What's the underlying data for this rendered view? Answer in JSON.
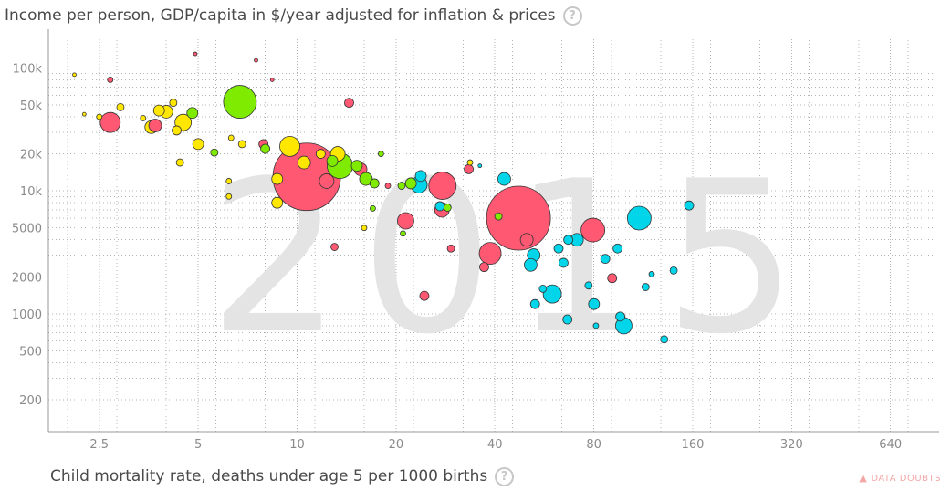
{
  "header": {
    "y_axis_title": "Income per person, GDP/capita in $/year adjusted for inflation & prices",
    "help_glyph": "?"
  },
  "footer": {
    "x_axis_title": "Child mortality rate, deaths under age 5 per 1000 births",
    "data_doubts_label": "DATA DOUBTS",
    "warning_glyph": "▲"
  },
  "colors": {
    "europe": "#ffe700",
    "asia": "#ff5872",
    "americas": "#7feb00",
    "africa": "#00d5e9",
    "grid": "#b4b4b4",
    "year_watermark": "#e4e4e4"
  },
  "chart_data": {
    "type": "scatter",
    "title": "",
    "year": "2015",
    "xlabel": "Child mortality rate, deaths under age 5 per 1000 births",
    "ylabel": "Income per person, GDP/capita in $/year adjusted for inflation & prices",
    "x_scale": "log",
    "y_scale": "log",
    "xlim": [
      1.75,
      900
    ],
    "ylim": [
      110,
      180000
    ],
    "x_ticks": [
      2.5,
      5,
      10,
      20,
      40,
      80,
      160,
      320,
      640
    ],
    "x_tick_labels": [
      "2.5",
      "5",
      "10",
      "20",
      "40",
      "80",
      "160",
      "320",
      "640"
    ],
    "y_ticks": [
      200,
      500,
      1000,
      2000,
      5000,
      10000,
      20000,
      50000,
      100000
    ],
    "y_tick_labels": [
      "200",
      "500",
      "1000",
      "2000",
      "5000",
      "10k",
      "20k",
      "50k",
      "100k"
    ],
    "grid": true,
    "points": [
      {
        "x": 2.7,
        "y": 36000,
        "r": 11,
        "c": "asia"
      },
      {
        "x": 2.1,
        "y": 88000,
        "r": 2,
        "c": "europe"
      },
      {
        "x": 2.25,
        "y": 42000,
        "r": 2,
        "c": "europe"
      },
      {
        "x": 2.5,
        "y": 40000,
        "r": 3,
        "c": "europe"
      },
      {
        "x": 2.7,
        "y": 80000,
        "r": 3,
        "c": "asia"
      },
      {
        "x": 2.9,
        "y": 48000,
        "r": 4,
        "c": "europe"
      },
      {
        "x": 3.4,
        "y": 39000,
        "r": 3,
        "c": "europe"
      },
      {
        "x": 3.6,
        "y": 33000,
        "r": 7,
        "c": "europe"
      },
      {
        "x": 3.7,
        "y": 34000,
        "r": 7,
        "c": "asia"
      },
      {
        "x": 3.8,
        "y": 45000,
        "r": 6,
        "c": "europe"
      },
      {
        "x": 4.0,
        "y": 44000,
        "r": 7,
        "c": "europe"
      },
      {
        "x": 4.3,
        "y": 31000,
        "r": 5,
        "c": "europe"
      },
      {
        "x": 4.5,
        "y": 36000,
        "r": 9,
        "c": "europe"
      },
      {
        "x": 4.2,
        "y": 52000,
        "r": 4,
        "c": "europe"
      },
      {
        "x": 4.8,
        "y": 43000,
        "r": 6,
        "c": "americas"
      },
      {
        "x": 5.0,
        "y": 24000,
        "r": 6,
        "c": "europe"
      },
      {
        "x": 4.4,
        "y": 17000,
        "r": 4,
        "c": "europe"
      },
      {
        "x": 5.6,
        "y": 20500,
        "r": 4,
        "c": "americas"
      },
      {
        "x": 4.9,
        "y": 130000,
        "r": 2,
        "c": "asia"
      },
      {
        "x": 6.7,
        "y": 53000,
        "r": 18,
        "c": "americas"
      },
      {
        "x": 6.3,
        "y": 27000,
        "r": 3,
        "c": "europe"
      },
      {
        "x": 6.8,
        "y": 24000,
        "r": 4,
        "c": "europe"
      },
      {
        "x": 6.2,
        "y": 12000,
        "r": 3,
        "c": "europe"
      },
      {
        "x": 6.2,
        "y": 9000,
        "r": 3,
        "c": "europe"
      },
      {
        "x": 7.5,
        "y": 115000,
        "r": 2,
        "c": "asia"
      },
      {
        "x": 7.9,
        "y": 24000,
        "r": 5,
        "c": "asia"
      },
      {
        "x": 8.0,
        "y": 22000,
        "r": 5,
        "c": "americas"
      },
      {
        "x": 8.4,
        "y": 80000,
        "r": 2,
        "c": "asia"
      },
      {
        "x": 8.7,
        "y": 12500,
        "r": 6,
        "c": "europe"
      },
      {
        "x": 8.7,
        "y": 8000,
        "r": 6,
        "c": "europe"
      },
      {
        "x": 9.5,
        "y": 23000,
        "r": 11,
        "c": "europe"
      },
      {
        "x": 10.7,
        "y": 13000,
        "r": 37,
        "c": "asia"
      },
      {
        "x": 10.5,
        "y": 17000,
        "r": 7,
        "c": "europe"
      },
      {
        "x": 11.8,
        "y": 20000,
        "r": 5,
        "c": "europe"
      },
      {
        "x": 12.3,
        "y": 12000,
        "r": 8,
        "c": "asia"
      },
      {
        "x": 12.8,
        "y": 17500,
        "r": 6,
        "c": "americas"
      },
      {
        "x": 13.5,
        "y": 16000,
        "r": 14,
        "c": "americas"
      },
      {
        "x": 13.3,
        "y": 20000,
        "r": 8,
        "c": "europe"
      },
      {
        "x": 13.0,
        "y": 3500,
        "r": 4,
        "c": "asia"
      },
      {
        "x": 14.4,
        "y": 52000,
        "r": 5,
        "c": "asia"
      },
      {
        "x": 15.6,
        "y": 15000,
        "r": 7,
        "c": "asia"
      },
      {
        "x": 15.2,
        "y": 16000,
        "r": 6,
        "c": "americas"
      },
      {
        "x": 16.2,
        "y": 12500,
        "r": 7,
        "c": "americas"
      },
      {
        "x": 17.2,
        "y": 11500,
        "r": 5,
        "c": "americas"
      },
      {
        "x": 17.0,
        "y": 7200,
        "r": 3,
        "c": "americas"
      },
      {
        "x": 16.0,
        "y": 5000,
        "r": 3,
        "c": "europe"
      },
      {
        "x": 18.0,
        "y": 20000,
        "r": 3,
        "c": "americas"
      },
      {
        "x": 18.9,
        "y": 11000,
        "r": 3,
        "c": "asia"
      },
      {
        "x": 21.4,
        "y": 5700,
        "r": 9,
        "c": "asia"
      },
      {
        "x": 21.0,
        "y": 4500,
        "r": 3,
        "c": "americas"
      },
      {
        "x": 20.8,
        "y": 11000,
        "r": 4,
        "c": "americas"
      },
      {
        "x": 22.2,
        "y": 11500,
        "r": 6,
        "c": "americas"
      },
      {
        "x": 23.8,
        "y": 13200,
        "r": 6,
        "c": "africa"
      },
      {
        "x": 23.5,
        "y": 11200,
        "r": 9,
        "c": "africa"
      },
      {
        "x": 27.7,
        "y": 11000,
        "r": 15,
        "c": "asia"
      },
      {
        "x": 27.6,
        "y": 7000,
        "r": 8,
        "c": "asia"
      },
      {
        "x": 28.7,
        "y": 7300,
        "r": 4,
        "c": "americas"
      },
      {
        "x": 27.2,
        "y": 7500,
        "r": 5,
        "c": "africa"
      },
      {
        "x": 29.4,
        "y": 3400,
        "r": 4,
        "c": "asia"
      },
      {
        "x": 24.4,
        "y": 1400,
        "r": 5,
        "c": "asia"
      },
      {
        "x": 33.3,
        "y": 15000,
        "r": 5,
        "c": "asia"
      },
      {
        "x": 33.6,
        "y": 17000,
        "r": 3,
        "c": "europe"
      },
      {
        "x": 37.1,
        "y": 2400,
        "r": 5,
        "c": "asia"
      },
      {
        "x": 38.7,
        "y": 3100,
        "r": 12,
        "c": "asia"
      },
      {
        "x": 36.0,
        "y": 16000,
        "r": 2,
        "c": "africa"
      },
      {
        "x": 42.7,
        "y": 12500,
        "r": 7,
        "c": "africa"
      },
      {
        "x": 41.0,
        "y": 6200,
        "r": 4,
        "c": "americas"
      },
      {
        "x": 47.2,
        "y": 6000,
        "r": 35,
        "c": "asia"
      },
      {
        "x": 50.0,
        "y": 4000,
        "r": 7,
        "c": "asia"
      },
      {
        "x": 52.5,
        "y": 3000,
        "r": 7,
        "c": "africa"
      },
      {
        "x": 51.4,
        "y": 2500,
        "r": 7,
        "c": "africa"
      },
      {
        "x": 53.0,
        "y": 1200,
        "r": 5,
        "c": "africa"
      },
      {
        "x": 56.0,
        "y": 1600,
        "r": 4,
        "c": "africa"
      },
      {
        "x": 59.8,
        "y": 1450,
        "r": 10,
        "c": "africa"
      },
      {
        "x": 62.5,
        "y": 3400,
        "r": 5,
        "c": "africa"
      },
      {
        "x": 64.7,
        "y": 2600,
        "r": 5,
        "c": "africa"
      },
      {
        "x": 66.5,
        "y": 900,
        "r": 5,
        "c": "africa"
      },
      {
        "x": 66.9,
        "y": 4000,
        "r": 5,
        "c": "africa"
      },
      {
        "x": 71.1,
        "y": 4000,
        "r": 7,
        "c": "africa"
      },
      {
        "x": 79.5,
        "y": 4800,
        "r": 13,
        "c": "asia"
      },
      {
        "x": 77.1,
        "y": 1700,
        "r": 4,
        "c": "africa"
      },
      {
        "x": 80.1,
        "y": 1200,
        "r": 6,
        "c": "africa"
      },
      {
        "x": 81.2,
        "y": 800,
        "r": 3,
        "c": "africa"
      },
      {
        "x": 86.7,
        "y": 2800,
        "r": 5,
        "c": "africa"
      },
      {
        "x": 91.0,
        "y": 1950,
        "r": 5,
        "c": "asia"
      },
      {
        "x": 94.5,
        "y": 3400,
        "r": 5,
        "c": "africa"
      },
      {
        "x": 96.3,
        "y": 950,
        "r": 5,
        "c": "africa"
      },
      {
        "x": 98.7,
        "y": 800,
        "r": 9,
        "c": "africa"
      },
      {
        "x": 110.0,
        "y": 6000,
        "r": 13,
        "c": "africa"
      },
      {
        "x": 115.0,
        "y": 1650,
        "r": 4,
        "c": "africa"
      },
      {
        "x": 120.0,
        "y": 2100,
        "r": 3,
        "c": "africa"
      },
      {
        "x": 140.0,
        "y": 2250,
        "r": 4,
        "c": "africa"
      },
      {
        "x": 156.0,
        "y": 7600,
        "r": 5,
        "c": "africa"
      },
      {
        "x": 131.0,
        "y": 620,
        "r": 4,
        "c": "africa"
      }
    ]
  }
}
